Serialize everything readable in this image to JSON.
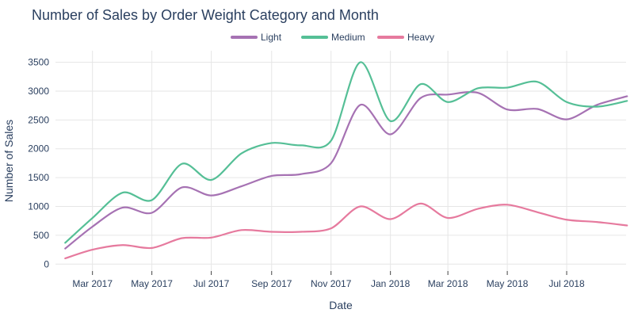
{
  "chart_data": {
    "type": "line",
    "title": "Number of Sales by Order Weight Category and Month",
    "xlabel": "Date",
    "ylabel": "Number of Sales",
    "x": [
      "2017-02",
      "2017-03",
      "2017-04",
      "2017-05",
      "2017-06",
      "2017-07",
      "2017-08",
      "2017-09",
      "2017-10",
      "2017-11",
      "2017-12",
      "2018-01",
      "2018-02",
      "2018-03",
      "2018-04",
      "2018-05",
      "2018-06",
      "2018-07",
      "2018-08",
      "2018-09"
    ],
    "x_ticks": [
      {
        "value": "2017-03",
        "label": "Mar 2017"
      },
      {
        "value": "2017-05",
        "label": "May 2017"
      },
      {
        "value": "2017-07",
        "label": "Jul 2017"
      },
      {
        "value": "2017-09",
        "label": "Sep 2017"
      },
      {
        "value": "2017-11",
        "label": "Nov 2017"
      },
      {
        "value": "2018-01",
        "label": "Jan 2018"
      },
      {
        "value": "2018-03",
        "label": "Mar 2018"
      },
      {
        "value": "2018-05",
        "label": "May 2018"
      },
      {
        "value": "2018-07",
        "label": "Jul 2018"
      }
    ],
    "xlim": [
      "2017-01-22",
      "2018-08-31"
    ],
    "ylim": [
      -120,
      3700
    ],
    "y_ticks": [
      0,
      500,
      1000,
      1500,
      2000,
      2500,
      3000,
      3500
    ],
    "grid": true,
    "legend_position": "top-center",
    "series": [
      {
        "name": "Light",
        "color": "#a672b3",
        "values": [
          270,
          650,
          980,
          890,
          1330,
          1190,
          1350,
          1530,
          1560,
          1750,
          2760,
          2250,
          2880,
          2940,
          2970,
          2680,
          2690,
          2510,
          2760,
          2910
        ]
      },
      {
        "name": "Medium",
        "color": "#55bf96",
        "values": [
          370,
          800,
          1240,
          1110,
          1740,
          1460,
          1920,
          2100,
          2060,
          2140,
          3500,
          2480,
          3120,
          2810,
          3050,
          3060,
          3160,
          2810,
          2730,
          2830
        ]
      },
      {
        "name": "Heavy",
        "color": "#e67a9e",
        "values": [
          100,
          250,
          330,
          280,
          450,
          460,
          590,
          560,
          560,
          620,
          1000,
          780,
          1050,
          800,
          960,
          1030,
          900,
          770,
          730,
          670
        ]
      }
    ]
  }
}
